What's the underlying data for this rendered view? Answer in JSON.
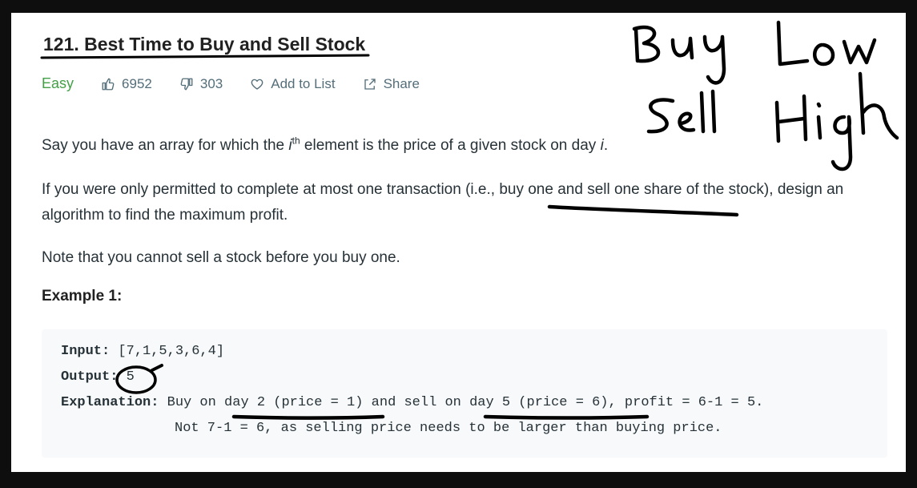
{
  "problem": {
    "title": "121. Best Time to Buy and Sell Stock",
    "difficulty": "Easy",
    "likes": "6952",
    "dislikes": "303",
    "add_to_list": "Add to List",
    "share": "Share"
  },
  "description": {
    "p1_before": "Say you have an array for which the ",
    "p1_var": "i",
    "p1_sup": "th",
    "p1_after": " element is the price of a given stock on day ",
    "p1_var2": "i",
    "p1_end": ".",
    "p2": "If you were only permitted to complete at most one transaction (i.e., buy one and sell one share of the stock), design an algorithm to find the maximum profit.",
    "p3": "Note that you cannot sell a stock before you buy one."
  },
  "example": {
    "title": "Example 1:",
    "input_label": "Input:",
    "input_value": " [7,1,5,3,6,4]",
    "output_label": "Output:",
    "output_value": " 5",
    "explanation_label": "Explanation:",
    "explanation_line1": " Buy on day 2 (price = 1) and sell on day 5 (price = 6), profit = 6-1 = 5.",
    "explanation_line2": "Not 7-1 = 6, as selling price needs to be larger than buying price."
  },
  "colors": {
    "difficulty_easy": "#43a047",
    "meta_text": "#546e7a",
    "code_bg": "#f7f9fa",
    "ink": "#000000"
  }
}
